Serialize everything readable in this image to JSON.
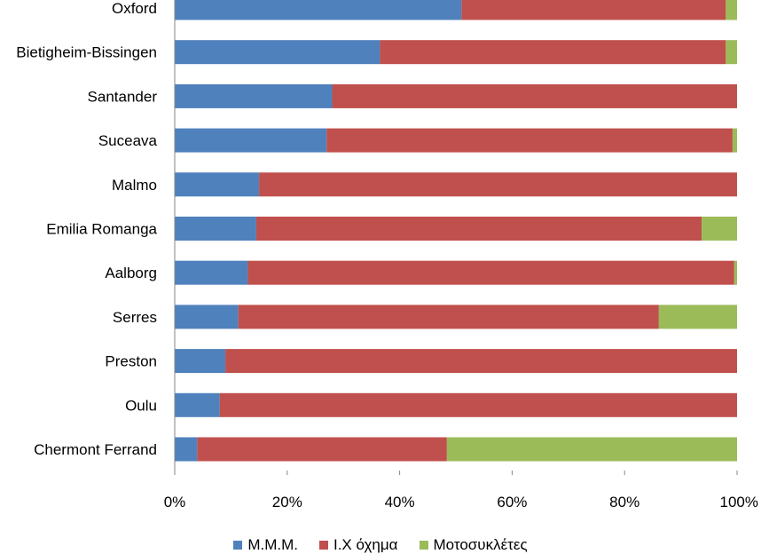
{
  "chart_data": {
    "type": "bar",
    "orientation": "horizontal",
    "stacked": "percent",
    "title": "",
    "xlabel": "",
    "ylabel": "",
    "xlim": [
      0,
      100
    ],
    "x_ticks": [
      "0%",
      "20%",
      "40%",
      "60%",
      "80%",
      "100%"
    ],
    "legend_position": "bottom",
    "categories": [
      "Oxford",
      "Bietigheim-Bissingen",
      "Santander",
      "Suceava",
      "Malmo",
      "Emilia Romanga",
      "Aalborg",
      "Serres",
      "Preston",
      "Oulu",
      "Chermont Ferrand"
    ],
    "series": [
      {
        "name": "Μ.Μ.Μ.",
        "color": "#4f81bd",
        "values": [
          51,
          36.5,
          28,
          27,
          15,
          14.5,
          13,
          11.3,
          9,
          8,
          4
        ]
      },
      {
        "name": "Ι.Χ όχημα",
        "color": "#c0504d",
        "values": [
          47,
          61.5,
          72,
          72.2,
          85,
          79.2,
          86.5,
          74.8,
          91,
          92,
          44.4
        ]
      },
      {
        "name": "Μοτοσυκλέτες",
        "color": "#9bbb59",
        "values": [
          2,
          2,
          0,
          0.8,
          0,
          6.3,
          0.5,
          13.9,
          0,
          0,
          51.6
        ]
      }
    ]
  }
}
